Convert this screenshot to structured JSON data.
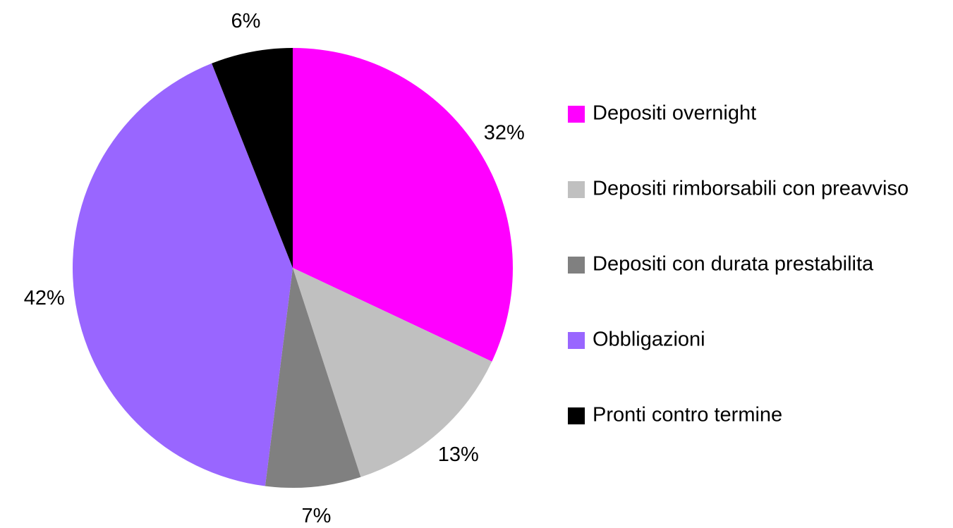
{
  "chart_data": {
    "type": "pie",
    "categories": [
      "Depositi overnight",
      "Depositi rimborsabili con preavviso",
      "Depositi con durata prestabilita",
      "Obbligazioni",
      "Pronti contro termine"
    ],
    "values": [
      32,
      13,
      7,
      42,
      6
    ],
    "value_labels": [
      "32%",
      "13%",
      "7%",
      "42%",
      "6%"
    ],
    "colors": [
      "#ff00ff",
      "#c0c0c0",
      "#808080",
      "#9966ff",
      "#000000"
    ],
    "legend": "right"
  }
}
